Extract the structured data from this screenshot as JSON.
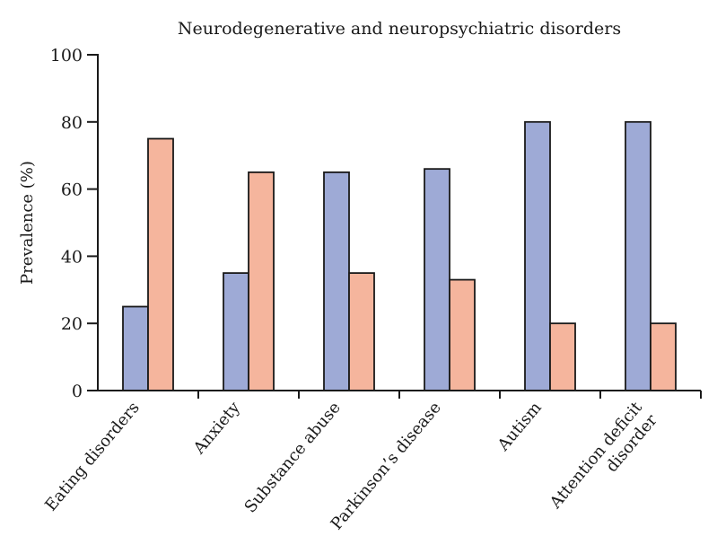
{
  "chart_data": {
    "type": "bar",
    "title": "Neurodegenerative and neuropsychiatric disorders",
    "xlabel": "",
    "ylabel": "Prevalence (%)",
    "ylim": [
      0,
      100
    ],
    "yticks": [
      "0",
      "20",
      "40",
      "60",
      "80",
      "100"
    ],
    "categories": [
      [
        "Eating disorders"
      ],
      [
        "Anxiety"
      ],
      [
        "Substance abuse"
      ],
      [
        "Parkinson’s disease"
      ],
      [
        "Autism"
      ],
      [
        "Attention deficit",
        "disorder"
      ]
    ],
    "series": [
      {
        "values": [
          25,
          35,
          65,
          66,
          80,
          80
        ],
        "color": "#9eaad6"
      },
      {
        "values": [
          75,
          65,
          35,
          33,
          20,
          20
        ],
        "color": "#f5b59d"
      }
    ],
    "grid": false,
    "legend": "none"
  }
}
